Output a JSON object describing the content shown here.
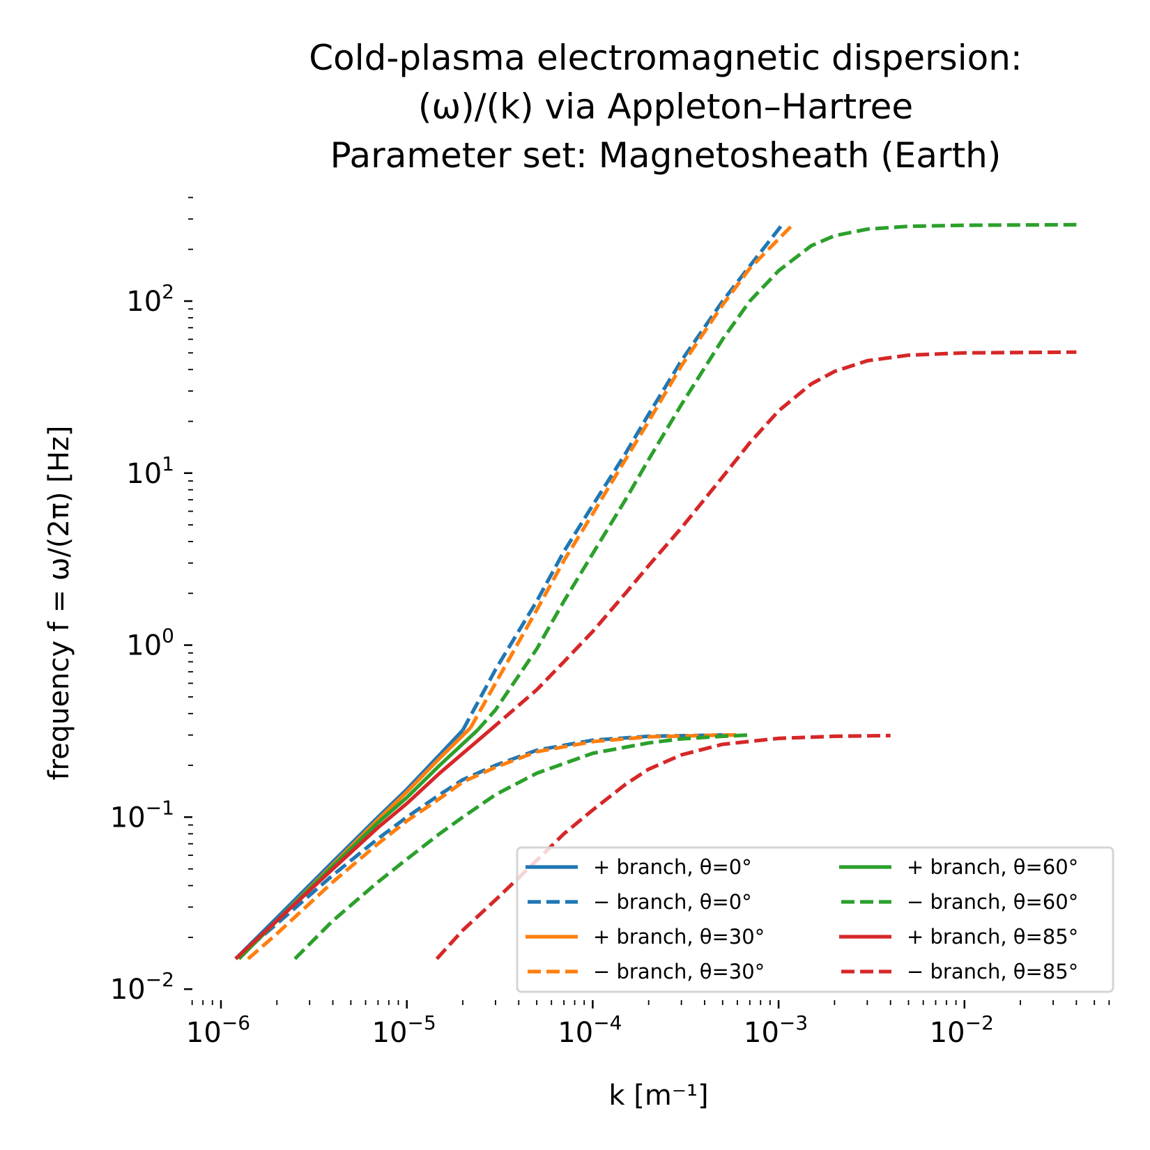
{
  "chart_data": {
    "type": "line",
    "title_lines": [
      "Cold-plasma electromagnetic dispersion:",
      "(ω)/(k) via Appleton–Hartree",
      "Parameter set: Magnetosheath (Earth)"
    ],
    "xlabel": "k [m⁻¹]",
    "ylabel": "frequency f = ω/(2π) [Hz]",
    "xscale": "log",
    "yscale": "log",
    "xlim": [
      6.5e-07,
      0.065
    ],
    "ylim": [
      0.01,
      450
    ],
    "x_ticks": [
      {
        "value": 1e-06,
        "base": "10",
        "exp": "−6"
      },
      {
        "value": 1e-05,
        "base": "10",
        "exp": "−5"
      },
      {
        "value": 0.0001,
        "base": "10",
        "exp": "−4"
      },
      {
        "value": 0.001,
        "base": "10",
        "exp": "−3"
      },
      {
        "value": 0.01,
        "base": "10",
        "exp": "−2"
      }
    ],
    "y_ticks": [
      {
        "value": 0.01,
        "base": "10",
        "exp": "−2"
      },
      {
        "value": 0.1,
        "base": "10",
        "exp": "−1"
      },
      {
        "value": 1,
        "base": "10",
        "exp": "0"
      },
      {
        "value": 10,
        "base": "10",
        "exp": "1"
      },
      {
        "value": 100,
        "base": "10",
        "exp": "2"
      }
    ],
    "grid": false,
    "legend": {
      "placement": "lower-right",
      "columns": 2,
      "entries": [
        {
          "label": "+ branch, θ=0°",
          "color": "#1f77b4",
          "style": "solid"
        },
        {
          "label": "− branch, θ=0°",
          "color": "#1f77b4",
          "style": "dashed"
        },
        {
          "label": "+ branch, θ=30°",
          "color": "#ff7f0e",
          "style": "solid"
        },
        {
          "label": "− branch, θ=30°",
          "color": "#ff7f0e",
          "style": "dashed"
        },
        {
          "label": "+ branch, θ=60°",
          "color": "#2ca02c",
          "style": "solid"
        },
        {
          "label": "− branch, θ=60°",
          "color": "#2ca02c",
          "style": "dashed"
        },
        {
          "label": "+ branch, θ=85°",
          "color": "#d62728",
          "style": "solid"
        },
        {
          "label": "− branch, θ=85°",
          "color": "#d62728",
          "style": "dashed"
        }
      ]
    },
    "series": [
      {
        "name": "+ branch, θ=0°",
        "color": "#1f77b4",
        "style": "solid",
        "segments": [
          [
            [
              1.2e-06,
              0.015
            ],
            [
              2e-06,
              0.026
            ],
            [
              4e-06,
              0.055
            ],
            [
              7e-06,
              0.1
            ],
            [
              1e-05,
              0.145
            ],
            [
              1.5e-05,
              0.23
            ],
            [
              2e-05,
              0.32
            ]
          ]
        ]
      },
      {
        "name": "− branch, θ=0°",
        "color": "#1f77b4",
        "style": "dashed",
        "segments": [
          [
            [
              2e-05,
              0.32
            ],
            [
              3e-05,
              0.72
            ],
            [
              5e-05,
              1.8
            ],
            [
              7e-05,
              3.5
            ],
            [
              0.0001,
              6.5
            ],
            [
              0.00015,
              13
            ],
            [
              0.0002,
              22
            ],
            [
              0.0003,
              45
            ],
            [
              0.0005,
              100
            ],
            [
              0.0007,
              160
            ],
            [
              0.00105,
              280
            ]
          ],
          [
            [
              1.2e-06,
              0.015
            ],
            [
              2e-06,
              0.024
            ],
            [
              4e-06,
              0.046
            ],
            [
              7e-06,
              0.075
            ],
            [
              1e-05,
              0.1
            ],
            [
              1.5e-05,
              0.135
            ],
            [
              2e-05,
              0.165
            ],
            [
              3e-05,
              0.2
            ],
            [
              5e-05,
              0.245
            ],
            [
              0.0001,
              0.28
            ],
            [
              0.0002,
              0.295
            ],
            [
              0.0005,
              0.3
            ]
          ]
        ]
      },
      {
        "name": "+ branch, θ=30°",
        "color": "#ff7f0e",
        "style": "solid",
        "segments": [
          [
            [
              1.25e-06,
              0.015
            ],
            [
              2e-06,
              0.025
            ],
            [
              4e-06,
              0.053
            ],
            [
              7e-06,
              0.097
            ],
            [
              1e-05,
              0.14
            ],
            [
              1.5e-05,
              0.22
            ],
            [
              2.2e-05,
              0.33
            ]
          ]
        ]
      },
      {
        "name": "− branch, θ=30°",
        "color": "#ff7f0e",
        "style": "dashed",
        "segments": [
          [
            [
              2.2e-05,
              0.33
            ],
            [
              3e-05,
              0.6
            ],
            [
              5e-05,
              1.6
            ],
            [
              7e-05,
              3.1
            ],
            [
              0.0001,
              5.8
            ],
            [
              0.00015,
              12
            ],
            [
              0.0002,
              20
            ],
            [
              0.0003,
              42
            ],
            [
              0.0005,
              95
            ],
            [
              0.0007,
              155
            ],
            [
              0.0012,
              280
            ]
          ],
          [
            [
              1.4e-06,
              0.015
            ],
            [
              2e-06,
              0.021
            ],
            [
              4e-06,
              0.042
            ],
            [
              7e-06,
              0.07
            ],
            [
              1e-05,
              0.095
            ],
            [
              1.5e-05,
              0.128
            ],
            [
              2e-05,
              0.16
            ],
            [
              3e-05,
              0.195
            ],
            [
              5e-05,
              0.24
            ],
            [
              0.0001,
              0.275
            ],
            [
              0.0002,
              0.293
            ],
            [
              0.0005,
              0.3
            ],
            [
              0.0006,
              0.3
            ]
          ]
        ]
      },
      {
        "name": "+ branch, θ=60°",
        "color": "#2ca02c",
        "style": "solid",
        "segments": [
          [
            [
              1.25e-06,
              0.015
            ],
            [
              2e-06,
              0.025
            ],
            [
              4e-06,
              0.052
            ],
            [
              7e-06,
              0.093
            ],
            [
              1e-05,
              0.13
            ],
            [
              1.5e-05,
              0.2
            ],
            [
              2.4e-05,
              0.32
            ]
          ]
        ]
      },
      {
        "name": "− branch, θ=60°",
        "color": "#2ca02c",
        "style": "dashed",
        "segments": [
          [
            [
              2.4e-05,
              0.32
            ],
            [
              3e-05,
              0.42
            ],
            [
              5e-05,
              0.95
            ],
            [
              7e-05,
              1.8
            ],
            [
              0.0001,
              3.4
            ],
            [
              0.00015,
              7
            ],
            [
              0.0002,
              12
            ],
            [
              0.0003,
              25
            ],
            [
              0.0005,
              60
            ],
            [
              0.0007,
              100
            ],
            [
              0.001,
              150
            ],
            [
              0.0015,
              210
            ],
            [
              0.002,
              240
            ],
            [
              0.003,
              262
            ],
            [
              0.005,
              272
            ],
            [
              0.01,
              276
            ],
            [
              0.04,
              278
            ]
          ],
          [
            [
              2.5e-06,
              0.015
            ],
            [
              4e-06,
              0.025
            ],
            [
              7e-06,
              0.042
            ],
            [
              1e-05,
              0.057
            ],
            [
              1.5e-05,
              0.08
            ],
            [
              2e-05,
              0.1
            ],
            [
              3e-05,
              0.135
            ],
            [
              5e-05,
              0.18
            ],
            [
              0.0001,
              0.235
            ],
            [
              0.0002,
              0.27
            ],
            [
              0.0003,
              0.285
            ],
            [
              0.0005,
              0.295
            ],
            [
              0.0007,
              0.3
            ]
          ]
        ]
      },
      {
        "name": "+ branch, θ=85°",
        "color": "#d62728",
        "style": "solid",
        "segments": [
          [
            [
              1.2e-06,
              0.015
            ],
            [
              2e-06,
              0.025
            ],
            [
              4e-06,
              0.05
            ],
            [
              7e-06,
              0.087
            ],
            [
              1e-05,
              0.12
            ],
            [
              1.5e-05,
              0.18
            ],
            [
              2.8e-05,
              0.32
            ]
          ]
        ]
      },
      {
        "name": "− branch, θ=85°",
        "color": "#d62728",
        "style": "dashed",
        "segments": [
          [
            [
              2.8e-05,
              0.32
            ],
            [
              5e-05,
              0.55
            ],
            [
              7e-05,
              0.8
            ],
            [
              0.0001,
              1.2
            ],
            [
              0.00015,
              2
            ],
            [
              0.0002,
              2.9
            ],
            [
              0.0003,
              4.8
            ],
            [
              0.0005,
              9.5
            ],
            [
              0.0007,
              15
            ],
            [
              0.001,
              23
            ],
            [
              0.0015,
              33
            ],
            [
              0.002,
              39
            ],
            [
              0.003,
              45
            ],
            [
              0.005,
              48.5
            ],
            [
              0.01,
              50
            ],
            [
              0.04,
              50.5
            ]
          ],
          [
            [
              1.45e-05,
              0.015
            ],
            [
              2e-05,
              0.022
            ],
            [
              3e-05,
              0.033
            ],
            [
              5e-05,
              0.056
            ],
            [
              7e-05,
              0.08
            ],
            [
              0.0001,
              0.11
            ],
            [
              0.00015,
              0.155
            ],
            [
              0.0002,
              0.19
            ],
            [
              0.0003,
              0.23
            ],
            [
              0.0005,
              0.265
            ],
            [
              0.001,
              0.287
            ],
            [
              0.002,
              0.295
            ],
            [
              0.004,
              0.298
            ]
          ]
        ]
      }
    ]
  }
}
